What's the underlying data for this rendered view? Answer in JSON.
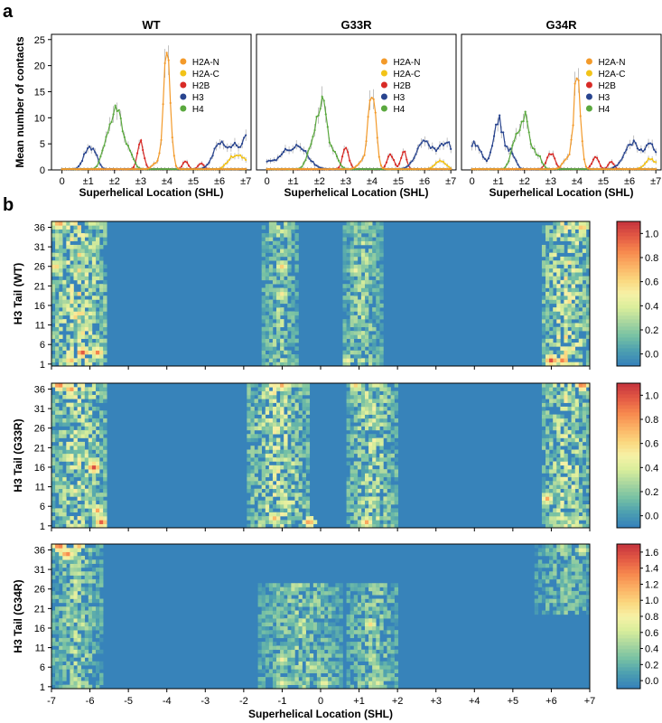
{
  "panel_labels": [
    "a",
    "b"
  ],
  "colors": {
    "H2A-N": "#f39a2a",
    "H2A-C": "#f2c318",
    "H2B": "#d82a26",
    "H3": "#28448f",
    "H4": "#5aa83e",
    "heat_scale": [
      "#3783ba",
      "#4da0b0",
      "#76c1a4",
      "#a8d69f",
      "#d9ee9b",
      "#f6f1a6",
      "#fbd77e",
      "#fbb165",
      "#f7894e",
      "#e55d45",
      "#c9383e"
    ]
  },
  "chart_data": [
    {
      "type": "line",
      "title": "WT",
      "xlabel": "Superhelical Location (SHL)",
      "ylabel": "Mean number of contacts",
      "ylim": [
        0,
        26
      ],
      "xlim": [
        -0.4,
        7.2
      ],
      "x_ticks": [
        0,
        1,
        2,
        3,
        4,
        5,
        6,
        7
      ],
      "x_tick_labels": [
        "0",
        "±1",
        "±2",
        "±3",
        "±4",
        "±5",
        "±6",
        "±7"
      ],
      "y_ticks": [
        0,
        5,
        10,
        15,
        20,
        25
      ],
      "y_tick_labels": [
        "0",
        "5",
        "10",
        "15",
        "20",
        "25"
      ],
      "legend_position": "top-right",
      "series": [
        {
          "name": "H2A-N",
          "peaks": [
            [
              4.0,
              22.0,
              0.13
            ],
            [
              3.6,
              1.2,
              0.15
            ]
          ]
        },
        {
          "name": "H2A-C",
          "peaks": [
            [
              6.5,
              2.5,
              0.2
            ],
            [
              6.9,
              2.0,
              0.15
            ]
          ]
        },
        {
          "name": "H2B",
          "peaks": [
            [
              3.0,
              5.0,
              0.12
            ],
            [
              4.7,
              1.5,
              0.1
            ],
            [
              5.3,
              1.2,
              0.1
            ]
          ]
        },
        {
          "name": "H3",
          "peaks": [
            [
              1.0,
              4.0,
              0.18
            ],
            [
              1.3,
              2.0,
              0.12
            ],
            [
              6.0,
              5.0,
              0.25
            ],
            [
              6.6,
              5.0,
              0.2
            ],
            [
              7.0,
              6.0,
              0.1
            ]
          ]
        },
        {
          "name": "H4",
          "peaks": [
            [
              2.1,
              12.0,
              0.22
            ],
            [
              1.7,
              4.5,
              0.18
            ],
            [
              2.6,
              2.5,
              0.15
            ]
          ]
        }
      ]
    },
    {
      "type": "line",
      "title": "G33R",
      "xlabel": "Superhelical Location (SHL)",
      "ylabel": "",
      "ylim": [
        0,
        26
      ],
      "xlim": [
        -0.4,
        7.2
      ],
      "x_ticks": [
        0,
        1,
        2,
        3,
        4,
        5,
        6,
        7
      ],
      "x_tick_labels": [
        "0",
        "±1",
        "±2",
        "±3",
        "±4",
        "±5",
        "±6",
        "±7"
      ],
      "legend_position": "top-right",
      "series": [
        {
          "name": "H2A-N",
          "peaks": [
            [
              4.0,
              15.5,
              0.14
            ],
            [
              3.6,
              1.5,
              0.15
            ]
          ]
        },
        {
          "name": "H2A-C",
          "peaks": [
            [
              6.6,
              1.5,
              0.2
            ]
          ]
        },
        {
          "name": "H2B",
          "peaks": [
            [
              3.0,
              4.0,
              0.12
            ],
            [
              4.7,
              3.0,
              0.12
            ],
            [
              5.2,
              3.5,
              0.1
            ]
          ]
        },
        {
          "name": "H3",
          "peaks": [
            [
              0.0,
              1.5,
              0.3
            ],
            [
              1.2,
              4.5,
              0.35
            ],
            [
              0.6,
              2.0,
              0.2
            ],
            [
              6.0,
              5.5,
              0.3
            ],
            [
              6.7,
              4.0,
              0.2
            ],
            [
              7.0,
              3.0,
              0.15
            ]
          ]
        },
        {
          "name": "H4",
          "peaks": [
            [
              2.1,
              12.5,
              0.2
            ],
            [
              1.7,
              4.0,
              0.18
            ],
            [
              2.6,
              2.5,
              0.15
            ]
          ]
        }
      ]
    },
    {
      "type": "line",
      "title": "G34R",
      "xlabel": "Superhelical Location (SHL)",
      "ylabel": "",
      "ylim": [
        0,
        26
      ],
      "xlim": [
        -0.4,
        7.2
      ],
      "x_ticks": [
        0,
        1,
        2,
        3,
        4,
        5,
        6,
        7
      ],
      "x_tick_labels": [
        "0",
        "±1",
        "±2",
        "±3",
        "±4",
        "±5",
        "±6",
        "±7"
      ],
      "legend_position": "top-right",
      "series": [
        {
          "name": "H2A-N",
          "peaks": [
            [
              4.0,
              17.5,
              0.13
            ],
            [
              3.6,
              2.0,
              0.15
            ]
          ]
        },
        {
          "name": "H2A-C",
          "peaks": [
            [
              6.8,
              2.0,
              0.2
            ]
          ]
        },
        {
          "name": "H2B",
          "peaks": [
            [
              3.0,
              3.0,
              0.15
            ],
            [
              4.7,
              2.5,
              0.12
            ],
            [
              5.3,
              1.5,
              0.1
            ]
          ]
        },
        {
          "name": "H3",
          "peaks": [
            [
              0.1,
              5.0,
              0.25
            ],
            [
              1.0,
              9.5,
              0.2
            ],
            [
              1.5,
              3.0,
              0.15
            ],
            [
              6.1,
              5.0,
              0.3
            ],
            [
              6.8,
              5.0,
              0.2
            ]
          ]
        },
        {
          "name": "H4",
          "peaks": [
            [
              2.0,
              10.0,
              0.2
            ],
            [
              1.6,
              4.0,
              0.15
            ],
            [
              2.5,
              2.5,
              0.15
            ]
          ]
        }
      ]
    },
    {
      "type": "heatmap",
      "ylabel": "H3 Tail (WT)",
      "xlabel": "",
      "xlim": [
        -7,
        7
      ],
      "ylim": [
        1,
        37
      ],
      "y_ticks": [
        1,
        6,
        11,
        16,
        21,
        26,
        31,
        36
      ],
      "colorbar_ticks": [
        0.0,
        0.2,
        0.4,
        0.6,
        0.8,
        1.0
      ],
      "colorbar_labels": [
        "0.0",
        "0.2",
        "0.4",
        "0.6",
        "0.8",
        "1.0"
      ],
      "vmax": 1.1,
      "bands": [
        {
          "x0": -7.0,
          "x1": -5.6,
          "y0": 1,
          "y1": 37,
          "v": 0.5
        },
        {
          "x0": -1.5,
          "x1": -0.6,
          "y0": 1,
          "y1": 37,
          "v": 0.35
        },
        {
          "x0": 0.6,
          "x1": 1.6,
          "y0": 1,
          "y1": 37,
          "v": 0.35
        },
        {
          "x0": 5.8,
          "x1": 7.0,
          "y0": 1,
          "y1": 37,
          "v": 0.5
        }
      ],
      "hotspots": [
        [
          -6.2,
          4,
          1.05
        ],
        [
          -5.8,
          4,
          0.9
        ],
        [
          -6.5,
          2,
          0.8
        ],
        [
          -6.8,
          37,
          0.9
        ],
        [
          6.0,
          2,
          1.05
        ],
        [
          6.3,
          2,
          0.95
        ],
        [
          6.8,
          36,
          0.8
        ],
        [
          -6.9,
          26,
          0.75
        ],
        [
          -1.0,
          26,
          0.7
        ],
        [
          -1.0,
          19,
          0.6
        ],
        [
          0.9,
          25,
          0.55
        ],
        [
          0.7,
          2,
          0.6
        ]
      ]
    },
    {
      "type": "heatmap",
      "ylabel": "H3 Tail (G33R)",
      "xlabel": "",
      "xlim": [
        -7,
        7
      ],
      "ylim": [
        1,
        37
      ],
      "y_ticks": [
        1,
        6,
        11,
        16,
        21,
        26,
        31,
        36
      ],
      "colorbar_ticks": [
        0.0,
        0.2,
        0.4,
        0.6,
        0.8,
        1.0
      ],
      "colorbar_labels": [
        "0.0",
        "0.2",
        "0.4",
        "0.6",
        "0.8",
        "1.0"
      ],
      "vmax": 1.1,
      "bands": [
        {
          "x0": -7.0,
          "x1": -5.6,
          "y0": 1,
          "y1": 37,
          "v": 0.45
        },
        {
          "x0": -1.9,
          "x1": -0.3,
          "y0": 1,
          "y1": 37,
          "v": 0.45
        },
        {
          "x0": 0.7,
          "x1": 2.0,
          "y0": 1,
          "y1": 37,
          "v": 0.4
        },
        {
          "x0": 5.8,
          "x1": 7.0,
          "y0": 1,
          "y1": 37,
          "v": 0.45
        }
      ],
      "hotspots": [
        [
          -6.8,
          37,
          1.0
        ],
        [
          -6.5,
          36,
          0.9
        ],
        [
          -5.9,
          16,
          1.05
        ],
        [
          -5.7,
          2,
          1.0
        ],
        [
          -5.8,
          5,
          0.8
        ],
        [
          -1.0,
          37,
          0.8
        ],
        [
          -0.3,
          2,
          0.9
        ],
        [
          1.2,
          2,
          0.8
        ],
        [
          0.9,
          37,
          0.7
        ],
        [
          6.8,
          37,
          1.0
        ],
        [
          5.9,
          8,
          0.8
        ],
        [
          -1.2,
          3,
          0.75
        ]
      ]
    },
    {
      "type": "heatmap",
      "ylabel": "H3 Tail (G34R)",
      "xlabel": "Superhelical Location (SHL)",
      "xlim": [
        -7,
        7
      ],
      "ylim": [
        1,
        37
      ],
      "x_ticks": [
        -7,
        -6,
        -5,
        -4,
        -3,
        -2,
        -1,
        0,
        1,
        2,
        3,
        4,
        5,
        6,
        7
      ],
      "x_tick_labels": [
        "-7",
        "-6",
        "-5",
        "-4",
        "-3",
        "-2",
        "-1",
        "0",
        "+1",
        "+2",
        "+3",
        "+4",
        "+5",
        "+6",
        "+7"
      ],
      "y_ticks": [
        1,
        6,
        11,
        16,
        21,
        26,
        31,
        36
      ],
      "colorbar_ticks": [
        0.0,
        0.2,
        0.4,
        0.6,
        0.8,
        1.0,
        1.2,
        1.4,
        1.6
      ],
      "colorbar_labels": [
        "0.0",
        "0.2",
        "0.4",
        "0.6",
        "0.8",
        "1.0",
        "1.2",
        "1.4",
        "1.6"
      ],
      "vmax": 1.7,
      "bands": [
        {
          "x0": -7.0,
          "x1": -5.7,
          "y0": 1,
          "y1": 37,
          "v": 0.55
        },
        {
          "x0": -1.6,
          "x1": 0.6,
          "y0": 1,
          "y1": 27,
          "v": 0.5
        },
        {
          "x0": 0.7,
          "x1": 2.0,
          "y0": 1,
          "y1": 27,
          "v": 0.5
        },
        {
          "x0": 5.6,
          "x1": 7.0,
          "y0": 20,
          "y1": 37,
          "v": 0.45
        }
      ],
      "hotspots": [
        [
          -6.8,
          37,
          1.6
        ],
        [
          -6.6,
          35,
          1.5
        ],
        [
          -6.3,
          37,
          1.2
        ],
        [
          1.3,
          17,
          1.0
        ],
        [
          -1.0,
          8,
          0.9
        ],
        [
          -1.0,
          2,
          0.85
        ],
        [
          0.1,
          2,
          0.9
        ],
        [
          1.5,
          2,
          0.8
        ],
        [
          -6.2,
          17,
          0.7
        ],
        [
          6.8,
          36,
          0.9
        ],
        [
          -6.4,
          3,
          0.7
        ],
        [
          -0.2,
          6,
          0.75
        ]
      ]
    }
  ]
}
